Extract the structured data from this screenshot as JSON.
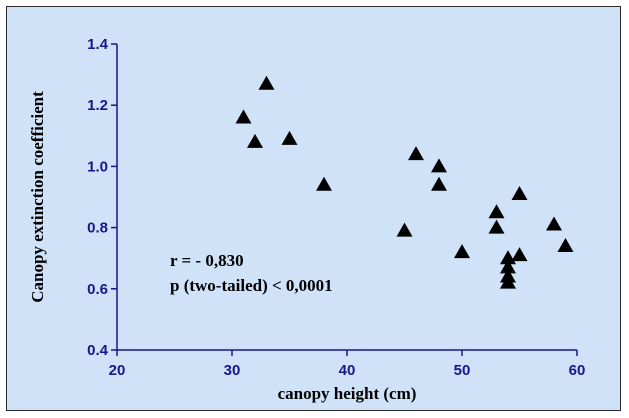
{
  "chart_data": {
    "type": "scatter",
    "title": "",
    "xlabel": "canopy  height (cm)",
    "ylabel": "Canopy extinction coefficient",
    "xlim": [
      20,
      60
    ],
    "ylim": [
      0.4,
      1.4
    ],
    "x_ticks": [
      20,
      30,
      40,
      50,
      60
    ],
    "y_ticks": [
      0.4,
      0.6,
      0.8,
      1.0,
      1.2,
      1.4
    ],
    "x_tick_labels": [
      "20",
      "30",
      "40",
      "50",
      "60"
    ],
    "y_tick_labels": [
      "0.4",
      "0.6",
      "0.8",
      "1.0",
      "1.2",
      "1.4"
    ],
    "grid": false,
    "marker": "triangle",
    "marker_color": "#000000",
    "series": [
      {
        "points": [
          [
            31,
            1.16
          ],
          [
            32,
            1.08
          ],
          [
            33,
            1.27
          ],
          [
            35,
            1.09
          ],
          [
            38,
            0.94
          ],
          [
            45,
            0.79
          ],
          [
            46,
            1.04
          ],
          [
            48,
            1.0
          ],
          [
            48,
            0.94
          ],
          [
            50,
            0.72
          ],
          [
            53,
            0.85
          ],
          [
            53,
            0.8
          ],
          [
            54,
            0.7
          ],
          [
            54,
            0.67
          ],
          [
            54,
            0.64
          ],
          [
            54,
            0.62
          ],
          [
            55,
            0.91
          ],
          [
            55,
            0.71
          ],
          [
            58,
            0.81
          ],
          [
            59,
            0.74
          ]
        ]
      }
    ],
    "annotations": [
      "r = - 0,830",
      "p (two-tailed) < 0,0001"
    ]
  }
}
